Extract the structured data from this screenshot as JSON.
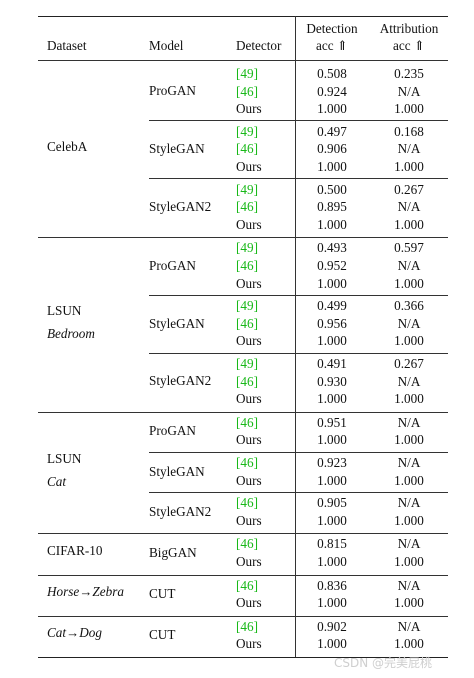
{
  "header": {
    "dataset": "Dataset",
    "model": "Model",
    "detector": "Detector",
    "detection_line1": "Detection",
    "detection_line2": "acc ⇑",
    "attribution_line1": "Attribution",
    "attribution_line2": "acc ⇑"
  },
  "groups": [
    {
      "dataset_lines": [
        {
          "text": "CelebA",
          "italic": false
        }
      ],
      "models": [
        {
          "model": "ProGAN",
          "rows": [
            {
              "det": "[49]",
              "ref": true,
              "detection": "0.508",
              "attribution": "0.235"
            },
            {
              "det": "[46]",
              "ref": true,
              "detection": "0.924",
              "attribution": "N/A"
            },
            {
              "det": "Ours",
              "ref": false,
              "detection": "1.000",
              "attribution": "1.000"
            }
          ]
        },
        {
          "model": "StyleGAN",
          "rows": [
            {
              "det": "[49]",
              "ref": true,
              "detection": "0.497",
              "attribution": "0.168"
            },
            {
              "det": "[46]",
              "ref": true,
              "detection": "0.906",
              "attribution": "N/A"
            },
            {
              "det": "Ours",
              "ref": false,
              "detection": "1.000",
              "attribution": "1.000"
            }
          ]
        },
        {
          "model": "StyleGAN2",
          "rows": [
            {
              "det": "[49]",
              "ref": true,
              "detection": "0.500",
              "attribution": "0.267"
            },
            {
              "det": "[46]",
              "ref": true,
              "detection": "0.895",
              "attribution": "N/A"
            },
            {
              "det": "Ours",
              "ref": false,
              "detection": "1.000",
              "attribution": "1.000"
            }
          ]
        }
      ]
    },
    {
      "dataset_lines": [
        {
          "text": "LSUN",
          "italic": false
        },
        {
          "text": "Bedroom",
          "italic": true
        }
      ],
      "models": [
        {
          "model": "ProGAN",
          "rows": [
            {
              "det": "[49]",
              "ref": true,
              "detection": "0.493",
              "attribution": "0.597"
            },
            {
              "det": "[46]",
              "ref": true,
              "detection": "0.952",
              "attribution": "N/A"
            },
            {
              "det": "Ours",
              "ref": false,
              "detection": "1.000",
              "attribution": "1.000"
            }
          ]
        },
        {
          "model": "StyleGAN",
          "rows": [
            {
              "det": "[49]",
              "ref": true,
              "detection": "0.499",
              "attribution": "0.366"
            },
            {
              "det": "[46]",
              "ref": true,
              "detection": "0.956",
              "attribution": "N/A"
            },
            {
              "det": "Ours",
              "ref": false,
              "detection": "1.000",
              "attribution": "1.000"
            }
          ]
        },
        {
          "model": "StyleGAN2",
          "rows": [
            {
              "det": "[49]",
              "ref": true,
              "detection": "0.491",
              "attribution": "0.267"
            },
            {
              "det": "[46]",
              "ref": true,
              "detection": "0.930",
              "attribution": "N/A"
            },
            {
              "det": "Ours",
              "ref": false,
              "detection": "1.000",
              "attribution": "1.000"
            }
          ]
        }
      ]
    },
    {
      "dataset_lines": [
        {
          "text": "LSUN",
          "italic": false
        },
        {
          "text": "Cat",
          "italic": true
        }
      ],
      "models": [
        {
          "model": "ProGAN",
          "rows": [
            {
              "det": "[46]",
              "ref": true,
              "detection": "0.951",
              "attribution": "N/A"
            },
            {
              "det": "Ours",
              "ref": false,
              "detection": "1.000",
              "attribution": "1.000"
            }
          ]
        },
        {
          "model": "StyleGAN",
          "rows": [
            {
              "det": "[46]",
              "ref": true,
              "detection": "0.923",
              "attribution": "N/A"
            },
            {
              "det": "Ours",
              "ref": false,
              "detection": "1.000",
              "attribution": "1.000"
            }
          ]
        },
        {
          "model": "StyleGAN2",
          "rows": [
            {
              "det": "[46]",
              "ref": true,
              "detection": "0.905",
              "attribution": "N/A"
            },
            {
              "det": "Ours",
              "ref": false,
              "detection": "1.000",
              "attribution": "1.000"
            }
          ]
        }
      ]
    },
    {
      "dataset_lines": [
        {
          "text": "CIFAR-10",
          "italic": false
        }
      ],
      "models": [
        {
          "model": "BigGAN",
          "rows": [
            {
              "det": "[46]",
              "ref": true,
              "detection": "0.815",
              "attribution": "N/A"
            },
            {
              "det": "Ours",
              "ref": false,
              "detection": "1.000",
              "attribution": "1.000"
            }
          ]
        }
      ]
    },
    {
      "dataset_lines": [
        {
          "text": "Horse→Zebra",
          "italic": true
        }
      ],
      "models": [
        {
          "model": "CUT",
          "rows": [
            {
              "det": "[46]",
              "ref": true,
              "detection": "0.836",
              "attribution": "N/A"
            },
            {
              "det": "Ours",
              "ref": false,
              "detection": "1.000",
              "attribution": "1.000"
            }
          ]
        }
      ]
    },
    {
      "dataset_lines": [
        {
          "text": "Cat→Dog",
          "italic": true
        }
      ],
      "models": [
        {
          "model": "CUT",
          "rows": [
            {
              "det": "[46]",
              "ref": true,
              "detection": "0.902",
              "attribution": "N/A"
            },
            {
              "det": "Ours",
              "ref": false,
              "detection": "1.000",
              "attribution": "1.000"
            }
          ]
        }
      ]
    }
  ],
  "watermark": "CSDN @完美屁桃",
  "colors": {
    "reference_link": "#18b818",
    "rule": "#222222",
    "watermark": "#cfcfcf"
  }
}
